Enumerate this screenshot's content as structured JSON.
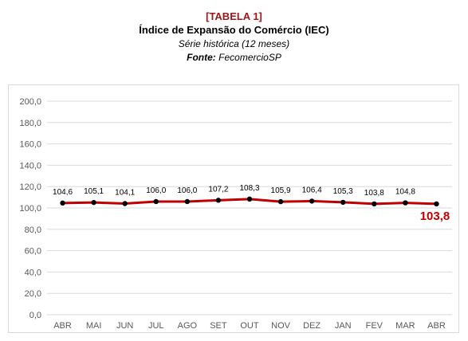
{
  "header": {
    "tag": "[TABELA 1]",
    "title": "Índice de Expansão do Comércio (IEC)",
    "subtitle": "Série histórica (12 meses)",
    "source_label": "Fonte:",
    "source_value": "FecomercioSP"
  },
  "chart_data": {
    "type": "line",
    "categories": [
      "ABR",
      "MAI",
      "JUN",
      "JUL",
      "AGO",
      "SET",
      "OUT",
      "NOV",
      "DEZ",
      "JAN",
      "FEV",
      "MAR",
      "ABR"
    ],
    "values": [
      104.6,
      105.1,
      104.1,
      106.0,
      106.0,
      107.2,
      108.3,
      105.9,
      106.4,
      105.3,
      103.8,
      104.8,
      103.8
    ],
    "data_labels": [
      "104,6",
      "105,1",
      "104,1",
      "106,0",
      "106,0",
      "107,2",
      "108,3",
      "105,9",
      "106,4",
      "105,3",
      "103,8",
      "104,8",
      "103,8"
    ],
    "yticks": [
      0,
      20,
      40,
      60,
      80,
      100,
      120,
      140,
      160,
      180,
      200
    ],
    "ytick_labels": [
      "0,0",
      "20,0",
      "40,0",
      "60,0",
      "80,0",
      "100,0",
      "120,0",
      "140,0",
      "160,0",
      "180,0",
      "200,0"
    ],
    "ylim": [
      0,
      200
    ],
    "grid": true,
    "title": "",
    "xlabel": "",
    "ylabel": "",
    "line_color": "#c00000",
    "marker_color": "#000000",
    "grid_color": "#d9d9d9",
    "tick_color": "#595959",
    "highlight_last": true
  }
}
